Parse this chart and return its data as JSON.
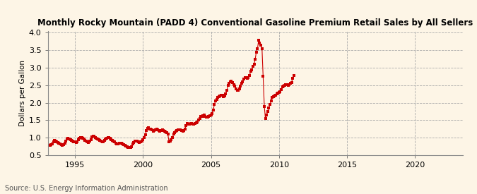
{
  "title": "Monthly Rocky Mountain (PADD 4) Conventional Gasoline Premium Retail Sales by All Sellers",
  "ylabel": "Dollars per Gallon",
  "source": "Source: U.S. Energy Information Administration",
  "bg_color": "#fdf5e6",
  "marker_color": "#cc0000",
  "xlim": [
    1993.0,
    2023.5
  ],
  "ylim": [
    0.5,
    4.05
  ],
  "yticks": [
    0.5,
    1.0,
    1.5,
    2.0,
    2.5,
    3.0,
    3.5,
    4.0
  ],
  "xticks": [
    1995,
    2000,
    2005,
    2010,
    2015,
    2020
  ],
  "data": [
    [
      1993.17,
      0.78
    ],
    [
      1993.25,
      0.8
    ],
    [
      1993.33,
      0.83
    ],
    [
      1993.42,
      0.88
    ],
    [
      1993.5,
      0.92
    ],
    [
      1993.58,
      0.91
    ],
    [
      1993.67,
      0.88
    ],
    [
      1993.75,
      0.87
    ],
    [
      1993.83,
      0.85
    ],
    [
      1993.92,
      0.82
    ],
    [
      1994.0,
      0.8
    ],
    [
      1994.08,
      0.78
    ],
    [
      1994.17,
      0.8
    ],
    [
      1994.25,
      0.85
    ],
    [
      1994.33,
      0.9
    ],
    [
      1994.42,
      0.96
    ],
    [
      1994.5,
      0.98
    ],
    [
      1994.58,
      0.97
    ],
    [
      1994.67,
      0.94
    ],
    [
      1994.75,
      0.92
    ],
    [
      1994.83,
      0.9
    ],
    [
      1994.92,
      0.88
    ],
    [
      1995.0,
      0.88
    ],
    [
      1995.08,
      0.86
    ],
    [
      1995.17,
      0.88
    ],
    [
      1995.25,
      0.95
    ],
    [
      1995.33,
      0.99
    ],
    [
      1995.42,
      1.01
    ],
    [
      1995.5,
      1.0
    ],
    [
      1995.58,
      0.98
    ],
    [
      1995.67,
      0.96
    ],
    [
      1995.75,
      0.93
    ],
    [
      1995.83,
      0.9
    ],
    [
      1995.92,
      0.88
    ],
    [
      1996.0,
      0.86
    ],
    [
      1996.08,
      0.9
    ],
    [
      1996.17,
      0.95
    ],
    [
      1996.25,
      1.02
    ],
    [
      1996.33,
      1.05
    ],
    [
      1996.42,
      1.04
    ],
    [
      1996.5,
      1.01
    ],
    [
      1996.58,
      0.99
    ],
    [
      1996.67,
      0.97
    ],
    [
      1996.75,
      0.94
    ],
    [
      1996.83,
      0.92
    ],
    [
      1996.92,
      0.9
    ],
    [
      1997.0,
      0.88
    ],
    [
      1997.08,
      0.88
    ],
    [
      1997.17,
      0.92
    ],
    [
      1997.25,
      0.97
    ],
    [
      1997.33,
      0.99
    ],
    [
      1997.42,
      1.0
    ],
    [
      1997.5,
      1.0
    ],
    [
      1997.58,
      0.98
    ],
    [
      1997.67,
      0.95
    ],
    [
      1997.75,
      0.93
    ],
    [
      1997.83,
      0.9
    ],
    [
      1997.92,
      0.88
    ],
    [
      1998.0,
      0.84
    ],
    [
      1998.08,
      0.82
    ],
    [
      1998.17,
      0.82
    ],
    [
      1998.25,
      0.84
    ],
    [
      1998.33,
      0.84
    ],
    [
      1998.42,
      0.84
    ],
    [
      1998.5,
      0.82
    ],
    [
      1998.58,
      0.8
    ],
    [
      1998.67,
      0.78
    ],
    [
      1998.75,
      0.76
    ],
    [
      1998.83,
      0.74
    ],
    [
      1998.92,
      0.72
    ],
    [
      1999.0,
      0.72
    ],
    [
      1999.08,
      0.72
    ],
    [
      1999.17,
      0.75
    ],
    [
      1999.25,
      0.82
    ],
    [
      1999.33,
      0.87
    ],
    [
      1999.42,
      0.9
    ],
    [
      1999.5,
      0.9
    ],
    [
      1999.58,
      0.9
    ],
    [
      1999.67,
      0.88
    ],
    [
      1999.75,
      0.87
    ],
    [
      1999.83,
      0.88
    ],
    [
      1999.92,
      0.9
    ],
    [
      2000.0,
      0.95
    ],
    [
      2000.08,
      1.0
    ],
    [
      2000.17,
      1.08
    ],
    [
      2000.25,
      1.2
    ],
    [
      2000.33,
      1.27
    ],
    [
      2000.42,
      1.28
    ],
    [
      2000.5,
      1.25
    ],
    [
      2000.58,
      1.24
    ],
    [
      2000.67,
      1.22
    ],
    [
      2000.75,
      1.18
    ],
    [
      2000.83,
      1.2
    ],
    [
      2000.92,
      1.22
    ],
    [
      2001.0,
      1.24
    ],
    [
      2001.08,
      1.22
    ],
    [
      2001.17,
      1.2
    ],
    [
      2001.25,
      1.18
    ],
    [
      2001.33,
      1.2
    ],
    [
      2001.42,
      1.22
    ],
    [
      2001.5,
      1.2
    ],
    [
      2001.58,
      1.18
    ],
    [
      2001.67,
      1.17
    ],
    [
      2001.75,
      1.14
    ],
    [
      2001.83,
      1.1
    ],
    [
      2001.92,
      0.88
    ],
    [
      2002.0,
      0.9
    ],
    [
      2002.08,
      0.95
    ],
    [
      2002.17,
      1.0
    ],
    [
      2002.25,
      1.1
    ],
    [
      2002.33,
      1.15
    ],
    [
      2002.42,
      1.18
    ],
    [
      2002.5,
      1.2
    ],
    [
      2002.58,
      1.22
    ],
    [
      2002.67,
      1.22
    ],
    [
      2002.75,
      1.22
    ],
    [
      2002.83,
      1.2
    ],
    [
      2002.92,
      1.18
    ],
    [
      2003.0,
      1.2
    ],
    [
      2003.08,
      1.25
    ],
    [
      2003.17,
      1.35
    ],
    [
      2003.25,
      1.4
    ],
    [
      2003.33,
      1.38
    ],
    [
      2003.42,
      1.38
    ],
    [
      2003.5,
      1.4
    ],
    [
      2003.58,
      1.4
    ],
    [
      2003.67,
      1.38
    ],
    [
      2003.75,
      1.38
    ],
    [
      2003.83,
      1.4
    ],
    [
      2003.92,
      1.42
    ],
    [
      2004.0,
      1.45
    ],
    [
      2004.08,
      1.5
    ],
    [
      2004.17,
      1.55
    ],
    [
      2004.25,
      1.6
    ],
    [
      2004.33,
      1.6
    ],
    [
      2004.42,
      1.62
    ],
    [
      2004.5,
      1.65
    ],
    [
      2004.58,
      1.6
    ],
    [
      2004.67,
      1.58
    ],
    [
      2004.75,
      1.58
    ],
    [
      2004.83,
      1.6
    ],
    [
      2004.92,
      1.62
    ],
    [
      2005.0,
      1.65
    ],
    [
      2005.08,
      1.7
    ],
    [
      2005.17,
      1.8
    ],
    [
      2005.25,
      1.95
    ],
    [
      2005.33,
      2.05
    ],
    [
      2005.42,
      2.1
    ],
    [
      2005.5,
      2.15
    ],
    [
      2005.58,
      2.18
    ],
    [
      2005.67,
      2.2
    ],
    [
      2005.75,
      2.22
    ],
    [
      2005.83,
      2.22
    ],
    [
      2005.92,
      2.18
    ],
    [
      2006.0,
      2.2
    ],
    [
      2006.08,
      2.25
    ],
    [
      2006.17,
      2.35
    ],
    [
      2006.25,
      2.5
    ],
    [
      2006.33,
      2.55
    ],
    [
      2006.42,
      2.6
    ],
    [
      2006.5,
      2.62
    ],
    [
      2006.58,
      2.58
    ],
    [
      2006.67,
      2.52
    ],
    [
      2006.75,
      2.48
    ],
    [
      2006.83,
      2.4
    ],
    [
      2006.92,
      2.35
    ],
    [
      2007.0,
      2.35
    ],
    [
      2007.08,
      2.4
    ],
    [
      2007.17,
      2.48
    ],
    [
      2007.25,
      2.55
    ],
    [
      2007.33,
      2.6
    ],
    [
      2007.42,
      2.68
    ],
    [
      2007.5,
      2.72
    ],
    [
      2007.58,
      2.72
    ],
    [
      2007.67,
      2.7
    ],
    [
      2007.75,
      2.72
    ],
    [
      2007.83,
      2.78
    ],
    [
      2007.92,
      2.9
    ],
    [
      2008.0,
      2.95
    ],
    [
      2008.08,
      3.05
    ],
    [
      2008.17,
      3.1
    ],
    [
      2008.25,
      3.25
    ],
    [
      2008.33,
      3.45
    ],
    [
      2008.42,
      3.55
    ],
    [
      2008.5,
      3.78
    ],
    [
      2008.58,
      3.7
    ],
    [
      2008.67,
      3.65
    ],
    [
      2008.75,
      3.55
    ],
    [
      2008.83,
      2.75
    ],
    [
      2008.92,
      1.9
    ],
    [
      2009.0,
      1.55
    ],
    [
      2009.08,
      1.65
    ],
    [
      2009.17,
      1.75
    ],
    [
      2009.25,
      1.85
    ],
    [
      2009.33,
      1.95
    ],
    [
      2009.42,
      2.05
    ],
    [
      2009.5,
      2.15
    ],
    [
      2009.58,
      2.18
    ],
    [
      2009.67,
      2.2
    ],
    [
      2009.75,
      2.22
    ],
    [
      2009.83,
      2.25
    ],
    [
      2009.92,
      2.28
    ],
    [
      2010.0,
      2.3
    ],
    [
      2010.08,
      2.32
    ],
    [
      2010.17,
      2.38
    ],
    [
      2010.25,
      2.45
    ],
    [
      2010.33,
      2.48
    ],
    [
      2010.42,
      2.5
    ],
    [
      2010.5,
      2.52
    ],
    [
      2010.58,
      2.52
    ],
    [
      2010.67,
      2.5
    ],
    [
      2010.75,
      2.52
    ],
    [
      2010.83,
      2.55
    ],
    [
      2010.92,
      2.58
    ],
    [
      2011.0,
      2.7
    ],
    [
      2011.08,
      2.78
    ]
  ]
}
